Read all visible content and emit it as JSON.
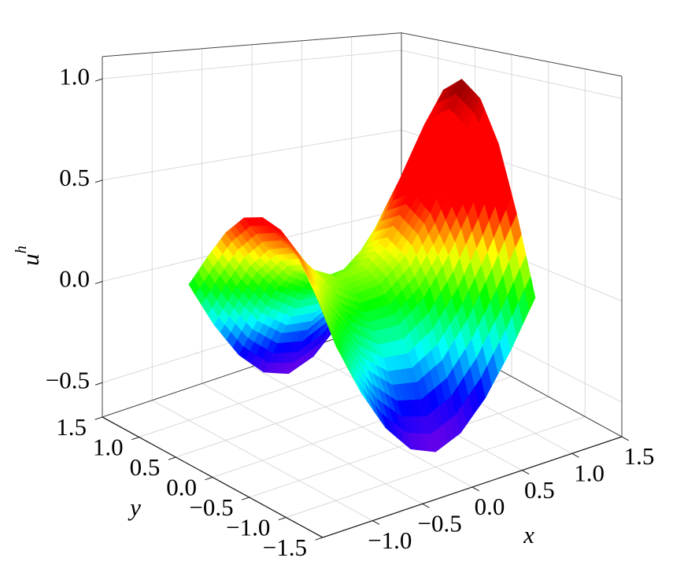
{
  "chart_data": {
    "type": "surface",
    "x": [
      -1,
      -0.75,
      -0.5,
      -0.25,
      0,
      0.25,
      0.5,
      0.75,
      1
    ],
    "y": [
      -1,
      -0.75,
      -0.5,
      -0.25,
      0,
      0.25,
      0.5,
      0.75,
      1
    ],
    "z": [
      [
        0,
        -0.23,
        -0.42,
        -0.55,
        -0.6,
        -0.55,
        -0.42,
        -0.23,
        0
      ],
      [
        0.17,
        -0.03,
        -0.2,
        -0.3,
        -0.32,
        -0.25,
        -0.09,
        0.13,
        0.38
      ],
      [
        0.32,
        0.14,
        -0.01,
        -0.09,
        -0.09,
        0.01,
        0.19,
        0.43,
        0.71
      ],
      [
        0.42,
        0.25,
        0.12,
        0.05,
        0.07,
        0.18,
        0.37,
        0.63,
        0.92
      ],
      [
        0.45,
        0.29,
        0.16,
        0.1,
        0.13,
        0.24,
        0.44,
        0.7,
        1.0
      ],
      [
        0.42,
        0.25,
        0.12,
        0.05,
        0.07,
        0.18,
        0.37,
        0.63,
        0.92
      ],
      [
        0.32,
        0.14,
        -0.01,
        -0.09,
        -0.09,
        0.01,
        0.19,
        0.43,
        0.71
      ],
      [
        0.17,
        -0.03,
        -0.2,
        -0.3,
        -0.32,
        -0.25,
        -0.09,
        0.13,
        0.38
      ],
      [
        0,
        -0.23,
        -0.42,
        -0.55,
        -0.6,
        -0.55,
        -0.42,
        -0.23,
        0
      ]
    ],
    "xlabel": "x",
    "ylabel": "y",
    "zlabel": "u",
    "zlabel_superscript": "h",
    "xlim": [
      -1.5,
      1.5
    ],
    "ylim": [
      -1.5,
      1.5
    ],
    "zlim": [
      -0.67,
      1.11
    ],
    "xticks": [
      {
        "value": -1,
        "label": "−1.0"
      },
      {
        "value": -0.5,
        "label": "−0.5"
      },
      {
        "value": 0,
        "label": "0.0"
      },
      0.5,
      {
        "value": 1,
        "label": "1.0"
      },
      1.5
    ],
    "yticks": [
      {
        "value": -1.5,
        "label": "−1.5"
      },
      {
        "value": -1,
        "label": "−1.0"
      },
      {
        "value": -0.5,
        "label": "−0.5"
      },
      {
        "value": 0,
        "label": "0.0"
      },
      0.5,
      {
        "value": 1,
        "label": "1.0"
      },
      1.5
    ],
    "zticks": [
      {
        "value": -0.5,
        "label": "−0.5"
      },
      {
        "value": 0,
        "label": "0.0"
      },
      0.5,
      {
        "value": 1,
        "label": "1.0"
      }
    ],
    "colormap": [
      "#7a00e6",
      "#0000ff",
      "#00ffff",
      "#00ff00",
      "#ffff00",
      "#ff0000",
      "#ff0000",
      "#ff0000",
      "#800000"
    ],
    "grid": true
  }
}
